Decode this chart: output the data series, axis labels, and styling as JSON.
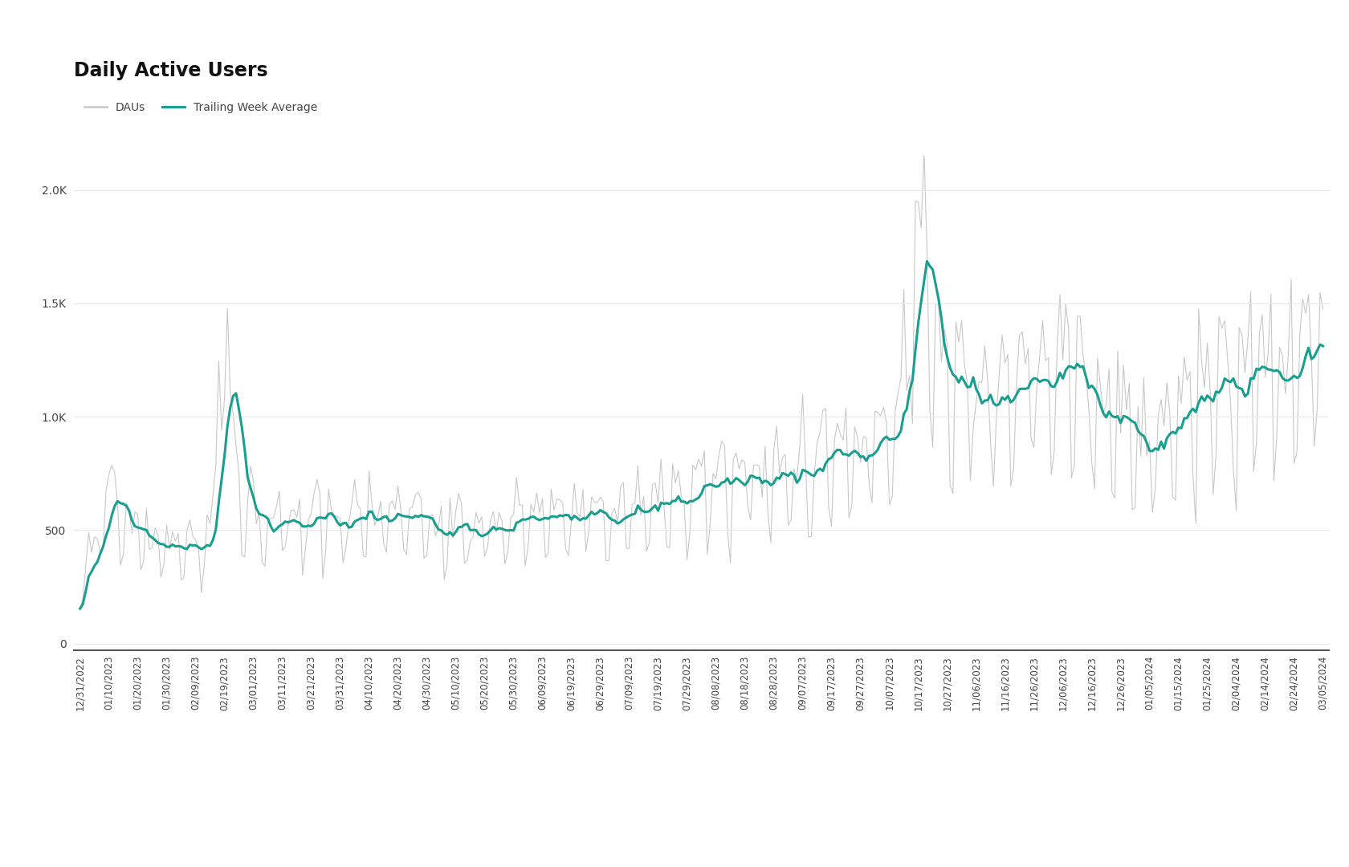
{
  "title": "Daily Active Users",
  "legend_labels": [
    "DAUs",
    "Trailing Week Average"
  ],
  "dau_color": "#c8c8c8",
  "twa_color": "#1a9e8f",
  "background_color": "#ffffff",
  "title_fontsize": 17,
  "title_fontweight": "bold",
  "ylabel_ticks": [
    "0",
    "500",
    "1.0K",
    "1.5K",
    "2.0K"
  ],
  "ylabel_values": [
    0,
    500,
    1000,
    1500,
    2000
  ],
  "ylim": [
    -30,
    2150
  ],
  "x_tick_labels": [
    "12/31/2022",
    "01/10/2023",
    "01/20/2023",
    "01/30/2023",
    "02/09/2023",
    "02/19/2023",
    "03/01/2023",
    "03/11/2023",
    "03/21/2023",
    "03/31/2023",
    "04/10/2023",
    "04/20/2023",
    "04/30/2023",
    "05/10/2023",
    "05/20/2023",
    "05/30/2023",
    "06/09/2023",
    "06/19/2023",
    "06/29/2023",
    "07/09/2023",
    "07/19/2023",
    "07/29/2023",
    "08/08/2023",
    "08/18/2023",
    "08/28/2023",
    "09/07/2023",
    "09/17/2023",
    "09/27/2023",
    "10/07/2023",
    "10/17/2023",
    "10/27/2023",
    "11/06/2023",
    "11/16/2023",
    "11/26/2023",
    "12/06/2023",
    "12/16/2023",
    "12/26/2023",
    "01/05/2024",
    "01/15/2024",
    "01/25/2024",
    "02/04/2024",
    "02/14/2024",
    "02/24/2024",
    "03/05/2024"
  ]
}
